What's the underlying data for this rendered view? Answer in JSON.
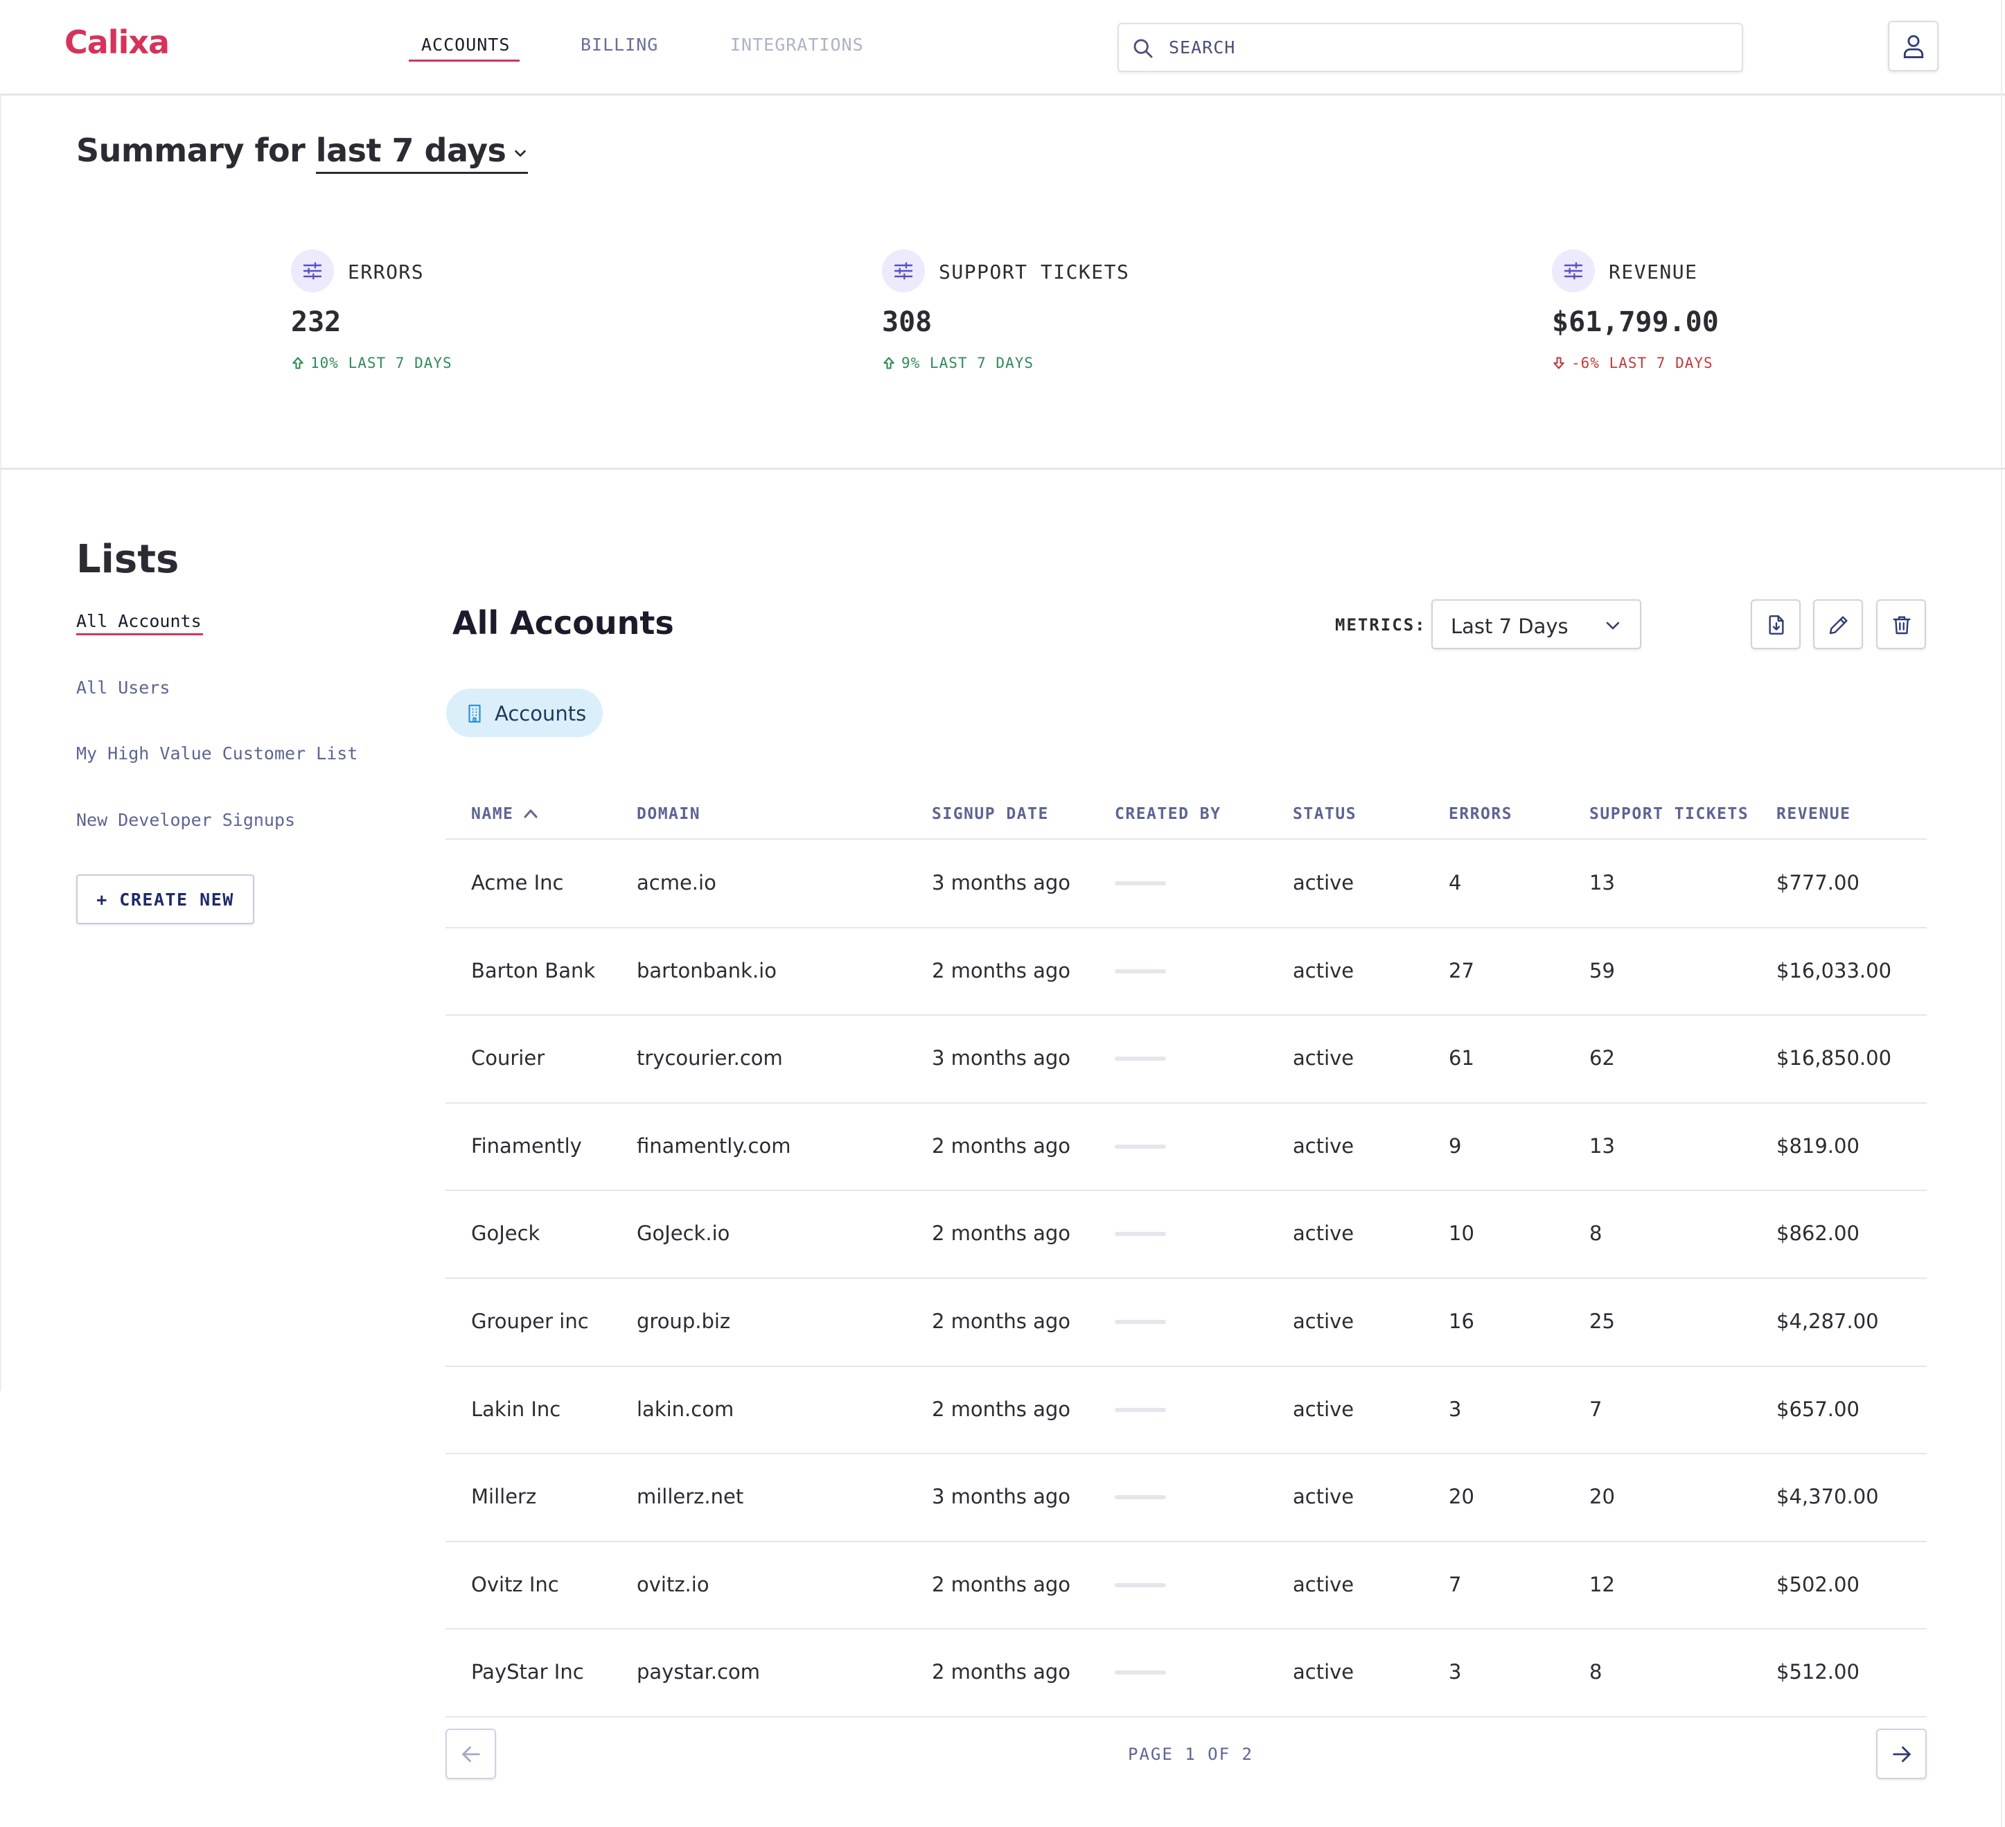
{
  "app": {
    "logo": "Calixa"
  },
  "nav": {
    "tabs": [
      {
        "label": "ACCOUNTS"
      },
      {
        "label": "BILLING"
      },
      {
        "label": "INTEGRATIONS"
      }
    ]
  },
  "search": {
    "placeholder": "SEARCH"
  },
  "summary": {
    "prefix": "Summary for ",
    "period": "last 7 days",
    "metrics": [
      {
        "label": "ERRORS",
        "value": "232",
        "change": "10% LAST 7 DAYS",
        "trend": "up"
      },
      {
        "label": "SUPPORT TICKETS",
        "value": "308",
        "change": "9% LAST 7 DAYS",
        "trend": "up"
      },
      {
        "label": "REVENUE",
        "value": "$61,799.00",
        "change": "-6% LAST 7 DAYS",
        "trend": "down"
      }
    ]
  },
  "lists": {
    "title": "Lists",
    "items": [
      {
        "label": "All Accounts"
      },
      {
        "label": "All Users"
      },
      {
        "label": "My High Value Customer List"
      },
      {
        "label": "New Developer Signups"
      }
    ],
    "create_label": "+ CREATE NEW"
  },
  "panel": {
    "title": "All Accounts",
    "metrics_label": "METRICS:",
    "metrics_value": "Last 7 Days",
    "chip_label": "Accounts"
  },
  "table": {
    "columns": [
      "NAME",
      "DOMAIN",
      "SIGNUP DATE",
      "CREATED BY",
      "STATUS",
      "ERRORS",
      "SUPPORT TICKETS",
      "REVENUE"
    ],
    "rows": [
      {
        "name": "Acme Inc",
        "domain": "acme.io",
        "signup": "3 months ago",
        "status": "active",
        "errors": "4",
        "tickets": "13",
        "revenue": "$777.00"
      },
      {
        "name": "Barton Bank",
        "domain": "bartonbank.io",
        "signup": "2 months ago",
        "status": "active",
        "errors": "27",
        "tickets": "59",
        "revenue": "$16,033.00"
      },
      {
        "name": "Courier",
        "domain": "trycourier.com",
        "signup": "3 months ago",
        "status": "active",
        "errors": "61",
        "tickets": "62",
        "revenue": "$16,850.00"
      },
      {
        "name": "Finamently",
        "domain": "finamently.com",
        "signup": "2 months ago",
        "status": "active",
        "errors": "9",
        "tickets": "13",
        "revenue": "$819.00"
      },
      {
        "name": "GoJeck",
        "domain": "GoJeck.io",
        "signup": "2 months ago",
        "status": "active",
        "errors": "10",
        "tickets": "8",
        "revenue": "$862.00"
      },
      {
        "name": "Grouper inc",
        "domain": "group.biz",
        "signup": "2 months ago",
        "status": "active",
        "errors": "16",
        "tickets": "25",
        "revenue": "$4,287.00"
      },
      {
        "name": "Lakin Inc",
        "domain": "lakin.com",
        "signup": "2 months ago",
        "status": "active",
        "errors": "3",
        "tickets": "7",
        "revenue": "$657.00"
      },
      {
        "name": "Millerz",
        "domain": "millerz.net",
        "signup": "3 months ago",
        "status": "active",
        "errors": "20",
        "tickets": "20",
        "revenue": "$4,370.00"
      },
      {
        "name": "Ovitz Inc",
        "domain": "ovitz.io",
        "signup": "2 months ago",
        "status": "active",
        "errors": "7",
        "tickets": "12",
        "revenue": "$502.00"
      },
      {
        "name": "PayStar Inc",
        "domain": "paystar.com",
        "signup": "2 months ago",
        "status": "active",
        "errors": "3",
        "tickets": "8",
        "revenue": "$512.00"
      }
    ]
  },
  "pagination": {
    "text": "PAGE 1 OF 2"
  },
  "colors": {
    "brand": "#d6335a",
    "up": "#2e8b57",
    "down": "#c23a3a",
    "chip_bg": "#dbeffb"
  },
  "icons": [
    "search-icon",
    "user-icon",
    "sliders-icon",
    "arrow-up-icon",
    "arrow-down-icon",
    "chevron-down-icon",
    "building-icon",
    "export-icon",
    "pencil-icon",
    "trash-icon",
    "arrow-left-icon",
    "arrow-right-icon",
    "sort-up-icon"
  ]
}
